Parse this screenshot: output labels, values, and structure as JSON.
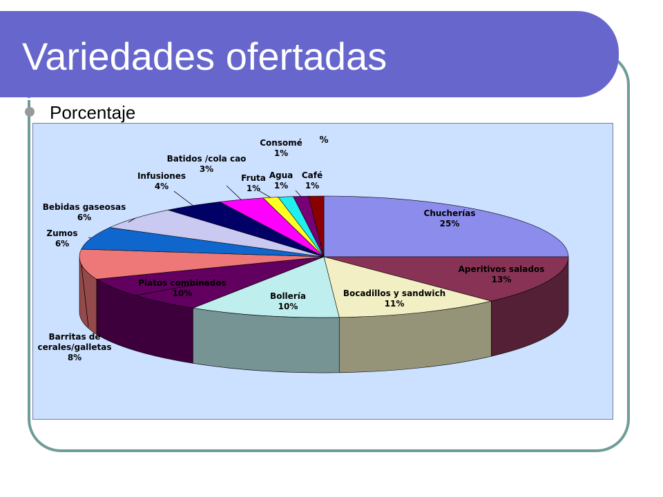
{
  "slide": {
    "title": "Variedades ofertadas",
    "bullet": "Porcentaje"
  },
  "chart_data": {
    "type": "pie",
    "title": "%",
    "three_d": true,
    "legend": "none",
    "slices": [
      {
        "label": "Chucherías",
        "value": 25,
        "pct": "25%",
        "color": "#8c8ced"
      },
      {
        "label": "Aperitivos salados",
        "value": 13,
        "pct": "13%",
        "color": "#883355"
      },
      {
        "label": "Bocadillos y sandwich",
        "value": 11,
        "pct": "11%",
        "color": "#f1efc3"
      },
      {
        "label": "Bollería",
        "value": 10,
        "pct": "10%",
        "color": "#bfeeee"
      },
      {
        "label": "Platos combinados",
        "value": 10,
        "pct": "10%",
        "color": "#620060"
      },
      {
        "label": "Barritas de cerales/galletas",
        "value": 8,
        "pct": "8%",
        "color": "#ee7777"
      },
      {
        "label": "Zumos",
        "value": 6,
        "pct": "6%",
        "color": "#0f66cc"
      },
      {
        "label": "Bebidas gaseosas",
        "value": 6,
        "pct": "6%",
        "color": "#c9c9f2"
      },
      {
        "label": "Infusiones",
        "value": 4,
        "pct": "4%",
        "color": "#000066"
      },
      {
        "label": "Batidos /cola cao",
        "value": 3,
        "pct": "3%",
        "color": "#ff00ff"
      },
      {
        "label": "Fruta",
        "value": 1,
        "pct": "1%",
        "color": "#ffff22"
      },
      {
        "label": "Agua",
        "value": 1,
        "pct": "1%",
        "color": "#22eeee"
      },
      {
        "label": "Consomé",
        "value": 1,
        "pct": "1%",
        "color": "#770077"
      },
      {
        "label": "Café",
        "value": 1,
        "pct": "1%",
        "color": "#880000"
      }
    ]
  }
}
